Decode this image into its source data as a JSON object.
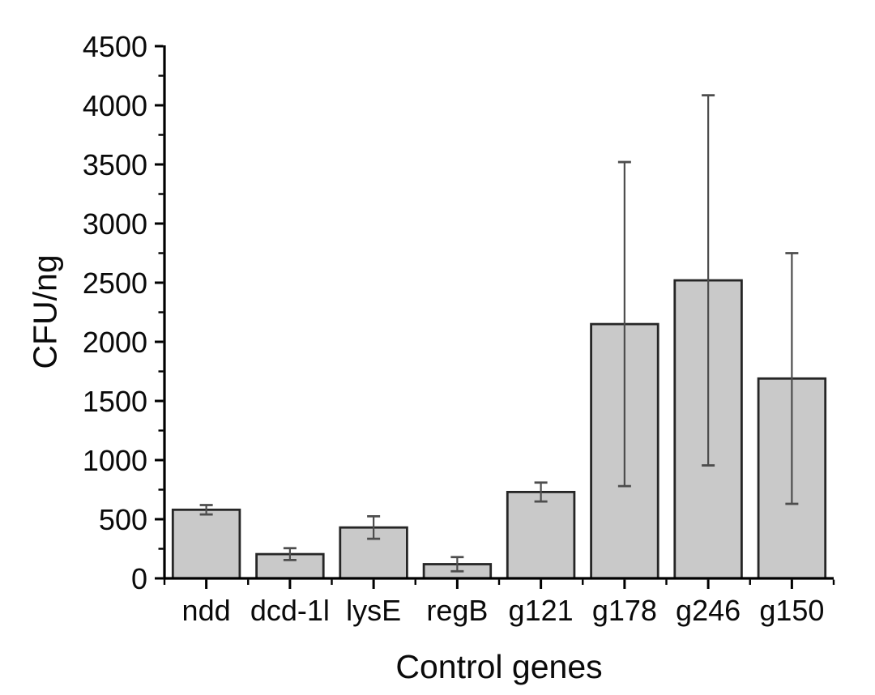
{
  "chart_data": {
    "type": "bar",
    "title": "",
    "xlabel": "Control genes",
    "ylabel": "CFU/ng",
    "categories": [
      "ndd",
      "dcd-1l",
      "lysE",
      "regB",
      "g121",
      "g178",
      "g246",
      "g150"
    ],
    "values": [
      580,
      205,
      430,
      120,
      730,
      2150,
      2520,
      1690
    ],
    "errors": [
      40,
      50,
      95,
      60,
      80,
      1370,
      1565,
      1060
    ],
    "ylim": [
      0,
      4500
    ],
    "y_tick_step": 500,
    "y_minor_tick_step": 250,
    "y_tick_labels": [
      "0",
      "500",
      "1000",
      "1500",
      "2000",
      "2500",
      "3000",
      "3500",
      "4000",
      "4500"
    ],
    "grid": false,
    "legend": null,
    "bar_fill": "#c9c9c9",
    "bar_edge": "#262626",
    "error_color": "#4d4d4d",
    "axis_color": "#000000",
    "text_color": "#0a0a0a"
  }
}
